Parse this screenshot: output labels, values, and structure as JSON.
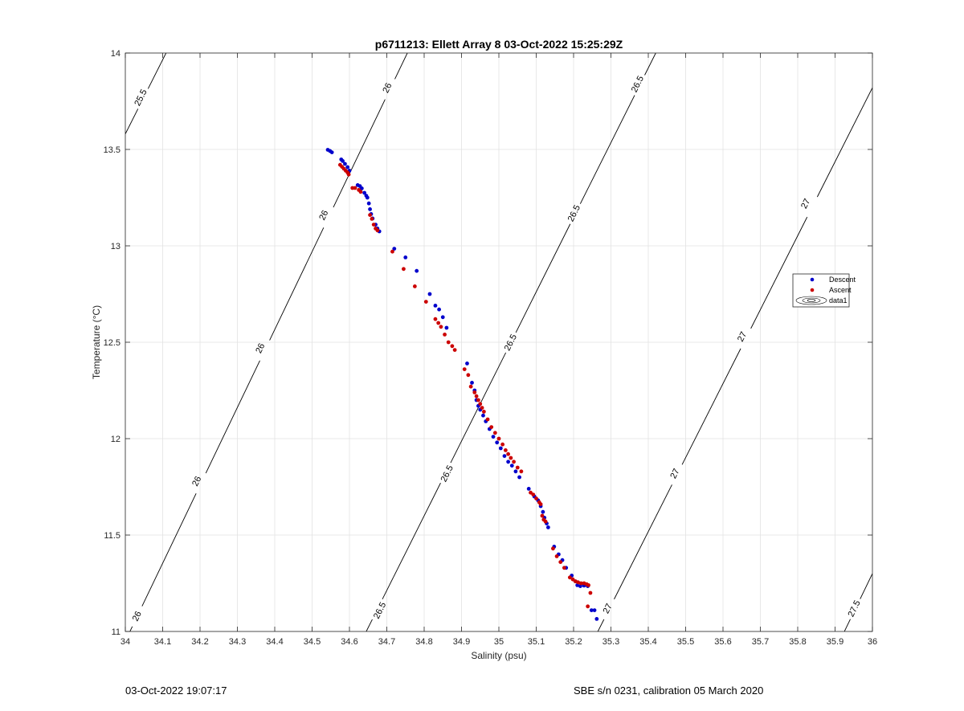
{
  "footer": {
    "left": "03-Oct-2022 19:07:17",
    "right": "SBE s/n 0231, calibration 05 March 2020"
  },
  "chart_data": {
    "type": "scatter",
    "title": "p6711213: Ellett Array 8 03-Oct-2022 15:25:29Z",
    "xlabel": "Salinity (psu)",
    "ylabel": "Temperature (°C)",
    "xlim": [
      34,
      36
    ],
    "ylim": [
      11,
      14
    ],
    "xticks": [
      "34",
      "34.1",
      "34.2",
      "34.3",
      "34.4",
      "34.5",
      "34.6",
      "34.7",
      "34.8",
      "34.9",
      "35",
      "35.1",
      "35.2",
      "35.3",
      "35.4",
      "35.5",
      "35.6",
      "35.7",
      "35.8",
      "35.9",
      "36"
    ],
    "yticks": [
      "11",
      "11.5",
      "12",
      "12.5",
      "13",
      "13.5",
      "14"
    ],
    "grid": true,
    "legend": {
      "placement": "right",
      "entries": [
        "Descent",
        "Ascent",
        "data1"
      ]
    },
    "contours": [
      {
        "level": "25.5",
        "points": [
          [
            34.0,
            13.58
          ],
          [
            34.109,
            14.0
          ]
        ],
        "labels": [
          [
            34.04,
            13.77
          ]
        ]
      },
      {
        "level": "26",
        "points": [
          [
            34.0,
            10.95
          ],
          [
            34.755,
            14.0
          ]
        ],
        "labels": [
          [
            34.03,
            11.08
          ],
          [
            34.19,
            11.78
          ],
          [
            34.36,
            12.47
          ],
          [
            34.53,
            13.16
          ],
          [
            34.7,
            13.82
          ]
        ]
      },
      {
        "level": "26.5",
        "points": [
          [
            34.645,
            11.0
          ],
          [
            35.42,
            14.0
          ]
        ],
        "labels": [
          [
            34.68,
            11.11
          ],
          [
            34.86,
            11.82
          ],
          [
            35.03,
            12.5
          ],
          [
            35.2,
            13.17
          ],
          [
            35.37,
            13.84
          ]
        ]
      },
      {
        "level": "27",
        "points": [
          [
            35.265,
            11.0
          ],
          [
            36.0,
            13.82
          ]
        ],
        "labels": [
          [
            35.29,
            11.12
          ],
          [
            35.47,
            11.82
          ],
          [
            35.65,
            12.53
          ],
          [
            35.82,
            13.22
          ]
        ]
      },
      {
        "level": "27.5",
        "points": [
          [
            35.925,
            11.0
          ],
          [
            36.0,
            11.3
          ]
        ],
        "labels": [
          [
            35.95,
            11.12
          ]
        ]
      }
    ],
    "series": [
      {
        "name": "Descent",
        "color": "#0000cc",
        "points": [
          [
            34.542,
            13.498
          ],
          [
            34.548,
            13.492
          ],
          [
            34.553,
            13.485
          ],
          [
            34.578,
            13.448
          ],
          [
            34.582,
            13.44
          ],
          [
            34.588,
            13.425
          ],
          [
            34.595,
            13.408
          ],
          [
            34.6,
            13.39
          ],
          [
            34.622,
            13.315
          ],
          [
            34.628,
            13.31
          ],
          [
            34.633,
            13.298
          ],
          [
            34.64,
            13.275
          ],
          [
            34.645,
            13.26
          ],
          [
            34.648,
            13.25
          ],
          [
            34.652,
            13.22
          ],
          [
            34.655,
            13.19
          ],
          [
            34.658,
            13.165
          ],
          [
            34.662,
            13.142
          ],
          [
            34.67,
            13.11
          ],
          [
            34.675,
            13.09
          ],
          [
            34.68,
            13.075
          ],
          [
            34.72,
            12.985
          ],
          [
            34.75,
            12.94
          ],
          [
            34.78,
            12.87
          ],
          [
            34.815,
            12.75
          ],
          [
            34.83,
            12.69
          ],
          [
            34.84,
            12.67
          ],
          [
            34.85,
            12.63
          ],
          [
            34.86,
            12.575
          ],
          [
            34.915,
            12.39
          ],
          [
            34.928,
            12.29
          ],
          [
            34.935,
            12.25
          ],
          [
            34.94,
            12.2
          ],
          [
            34.945,
            12.17
          ],
          [
            34.95,
            12.15
          ],
          [
            34.958,
            12.12
          ],
          [
            34.965,
            12.09
          ],
          [
            34.975,
            12.05
          ],
          [
            34.985,
            12.01
          ],
          [
            34.995,
            11.98
          ],
          [
            35.005,
            11.95
          ],
          [
            35.015,
            11.91
          ],
          [
            35.025,
            11.88
          ],
          [
            35.035,
            11.86
          ],
          [
            35.045,
            11.83
          ],
          [
            35.055,
            11.8
          ],
          [
            35.08,
            11.74
          ],
          [
            35.095,
            11.7
          ],
          [
            35.105,
            11.68
          ],
          [
            35.112,
            11.65
          ],
          [
            35.118,
            11.62
          ],
          [
            35.122,
            11.59
          ],
          [
            35.128,
            11.56
          ],
          [
            35.132,
            11.54
          ],
          [
            35.148,
            11.44
          ],
          [
            35.16,
            11.4
          ],
          [
            35.17,
            11.37
          ],
          [
            35.18,
            11.33
          ],
          [
            35.195,
            11.29
          ],
          [
            35.205,
            11.26
          ],
          [
            35.21,
            11.24
          ],
          [
            35.218,
            11.235
          ],
          [
            35.228,
            11.238
          ],
          [
            35.238,
            11.235
          ],
          [
            35.248,
            11.11
          ],
          [
            35.256,
            11.11
          ],
          [
            35.262,
            11.065
          ]
        ]
      },
      {
        "name": "Ascent",
        "color": "#cc0000",
        "points": [
          [
            34.575,
            13.42
          ],
          [
            34.58,
            13.41
          ],
          [
            34.585,
            13.4
          ],
          [
            34.59,
            13.39
          ],
          [
            34.595,
            13.38
          ],
          [
            34.598,
            13.37
          ],
          [
            34.608,
            13.3
          ],
          [
            34.615,
            13.3
          ],
          [
            34.625,
            13.29
          ],
          [
            34.63,
            13.28
          ],
          [
            34.655,
            13.16
          ],
          [
            34.66,
            13.14
          ],
          [
            34.665,
            13.11
          ],
          [
            34.67,
            13.09
          ],
          [
            34.675,
            13.08
          ],
          [
            34.715,
            12.97
          ],
          [
            34.745,
            12.88
          ],
          [
            34.775,
            12.79
          ],
          [
            34.805,
            12.71
          ],
          [
            34.83,
            12.62
          ],
          [
            34.838,
            12.6
          ],
          [
            34.845,
            12.58
          ],
          [
            34.855,
            12.54
          ],
          [
            34.865,
            12.5
          ],
          [
            34.875,
            12.48
          ],
          [
            34.882,
            12.46
          ],
          [
            34.908,
            12.36
          ],
          [
            34.918,
            12.33
          ],
          [
            34.925,
            12.27
          ],
          [
            34.935,
            12.24
          ],
          [
            34.94,
            12.22
          ],
          [
            34.945,
            12.2
          ],
          [
            34.95,
            12.18
          ],
          [
            34.955,
            12.16
          ],
          [
            34.96,
            12.14
          ],
          [
            34.97,
            12.1
          ],
          [
            34.98,
            12.06
          ],
          [
            34.99,
            12.03
          ],
          [
            35.0,
            12.0
          ],
          [
            35.01,
            11.97
          ],
          [
            35.018,
            11.94
          ],
          [
            35.025,
            11.92
          ],
          [
            35.032,
            11.9
          ],
          [
            35.04,
            11.88
          ],
          [
            35.05,
            11.85
          ],
          [
            35.06,
            11.83
          ],
          [
            35.085,
            11.72
          ],
          [
            35.092,
            11.71
          ],
          [
            35.1,
            11.69
          ],
          [
            35.108,
            11.67
          ],
          [
            35.112,
            11.66
          ],
          [
            35.116,
            11.6
          ],
          [
            35.12,
            11.58
          ],
          [
            35.125,
            11.57
          ],
          [
            35.145,
            11.43
          ],
          [
            35.155,
            11.39
          ],
          [
            35.165,
            11.36
          ],
          [
            35.175,
            11.33
          ],
          [
            35.19,
            11.28
          ],
          [
            35.198,
            11.27
          ],
          [
            35.205,
            11.26
          ],
          [
            35.212,
            11.255
          ],
          [
            35.22,
            11.25
          ],
          [
            35.228,
            11.25
          ],
          [
            35.235,
            11.245
          ],
          [
            35.24,
            11.24
          ],
          [
            35.245,
            11.2
          ],
          [
            35.238,
            11.13
          ]
        ]
      }
    ]
  }
}
